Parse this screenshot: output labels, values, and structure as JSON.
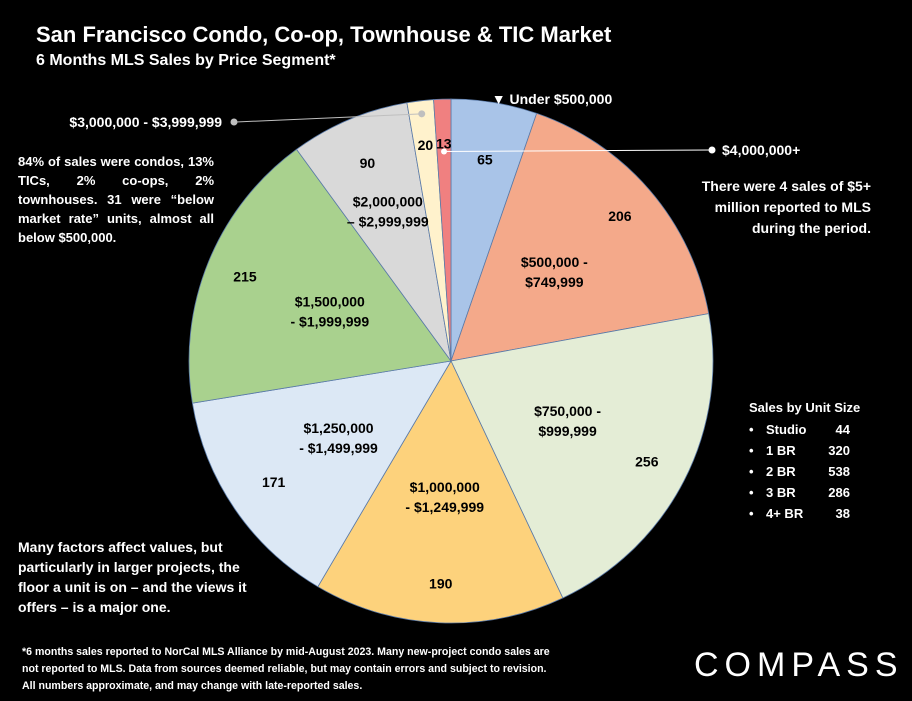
{
  "header": {
    "title": "San Francisco Condo, Co-op, Townhouse & TIC Market",
    "subtitle": "6 Months MLS Sales by Price Segment*"
  },
  "notes": {
    "left": "84% of sales were condos, 13% TICs, 2% co-ops, 2% townhouses. 31 were “below market rate” units, almost all below $500,000.",
    "right": "There were 4 sales of $5+ million reported to MLS during the period.",
    "bottom": "Many factors affect values, but particularly in larger projects, the floor a unit is on – and the views it offers – is a major one.",
    "footnote": "*6 months sales reported to NorCal MLS Alliance by mid-August 2023. Many new-project condo sales are not reported to MLS. Data from sources deemed reliable, but may contain errors and subject to revision. All numbers approximate, and may change with late-reported sales."
  },
  "logo": {
    "text": "COMPASS"
  },
  "unit_size": {
    "title": "Sales by Unit Size",
    "bullet": "•",
    "items": [
      {
        "label": "Studio",
        "count": "44"
      },
      {
        "label": "1 BR",
        "count": "320"
      },
      {
        "label": "2 BR",
        "count": "538"
      },
      {
        "label": "3 BR",
        "count": "286"
      },
      {
        "label": "4+ BR",
        "count": "38"
      }
    ]
  },
  "chart_data": {
    "type": "pie",
    "title": "San Francisco Condo, Co-op, Townhouse & TIC Market",
    "subtitle": "6 Months MLS Sales by Price Segment*",
    "slices": [
      {
        "label": "▼ Under $500,000",
        "value": 65,
        "color": "#a9c4e8"
      },
      {
        "label": "$500,000 - $749,999",
        "value": 206,
        "color": "#f4a98a"
      },
      {
        "label": "$750,000 - $999,999",
        "value": 256,
        "color": "#e4edd6"
      },
      {
        "label": "$1,000,000 - $1,249,999",
        "value": 190,
        "color": "#fdd27c"
      },
      {
        "label": "$1,250,000 - $1,499,999",
        "value": 171,
        "color": "#dce8f5"
      },
      {
        "label": "$1,500,000 - $1,999,999",
        "value": 215,
        "color": "#a9d18e"
      },
      {
        "label": "$2,000,000 – $2,999,999",
        "value": 90,
        "color": "#d9d9d9"
      },
      {
        "label": "$3,000,000 - $3,999,999",
        "value": 20,
        "color": "#fff2cc"
      },
      {
        "label": "$4,000,000+",
        "value": 13,
        "color": "#f08080"
      }
    ]
  }
}
